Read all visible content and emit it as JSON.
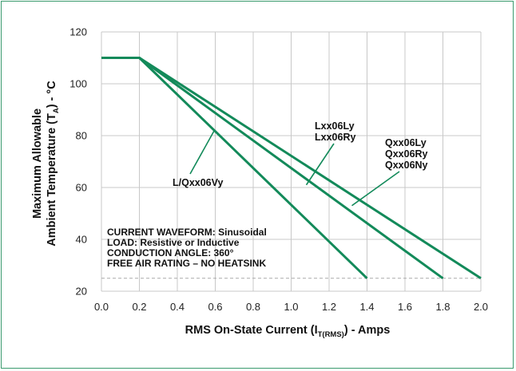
{
  "chart_data": {
    "type": "line",
    "title": "",
    "xlabel": {
      "main": "RMS On-State Current (I",
      "sub": "T(RMS)",
      "tail": ") - Amps"
    },
    "ylabel": {
      "line1": "Maximum Allowable",
      "line2_main": "Ambient Temperature (T",
      "line2_sub": "A",
      "line2_tail": ") - °C"
    },
    "xlim": [
      0.0,
      2.0
    ],
    "ylim": [
      20,
      120
    ],
    "xticks": [
      "0.0",
      "0.2",
      "0.4",
      "0.6",
      "0.8",
      "1.0",
      "1.2",
      "1.4",
      "1.6",
      "1.8",
      "2.0"
    ],
    "yticks": [
      "20",
      "40",
      "60",
      "80",
      "100",
      "120"
    ],
    "reference_line_y": 25,
    "line_color": "#138a5a",
    "grid_color": "#c8c8c8",
    "series": [
      {
        "name": "L/Qxx06Vy",
        "x": [
          0.0,
          0.2,
          1.4
        ],
        "y": [
          110,
          110,
          25
        ]
      },
      {
        "name": "Lxx06Ly / Lxx06Ry",
        "x": [
          0.0,
          0.2,
          1.8
        ],
        "y": [
          110,
          110,
          25
        ]
      },
      {
        "name": "Qxx06Ly / Qxx06Ry / Qxx06Ny",
        "x": [
          0.0,
          0.2,
          2.0
        ],
        "y": [
          110,
          110,
          25
        ]
      }
    ],
    "series_labels": {
      "s1": [
        "L/Qxx06Vy"
      ],
      "s2": [
        "Lxx06Ly",
        "Lxx06Ry"
      ],
      "s3": [
        "Qxx06Ly",
        "Qxx06Ry",
        "Qxx06Ny"
      ]
    },
    "annotations": [
      "CURRENT WAVEFORM: Sinusoidal",
      "LOAD: Resistive or Inductive",
      "CONDUCTION ANGLE: 360°",
      "FREE AIR RATING – NO HEATSINK"
    ]
  }
}
